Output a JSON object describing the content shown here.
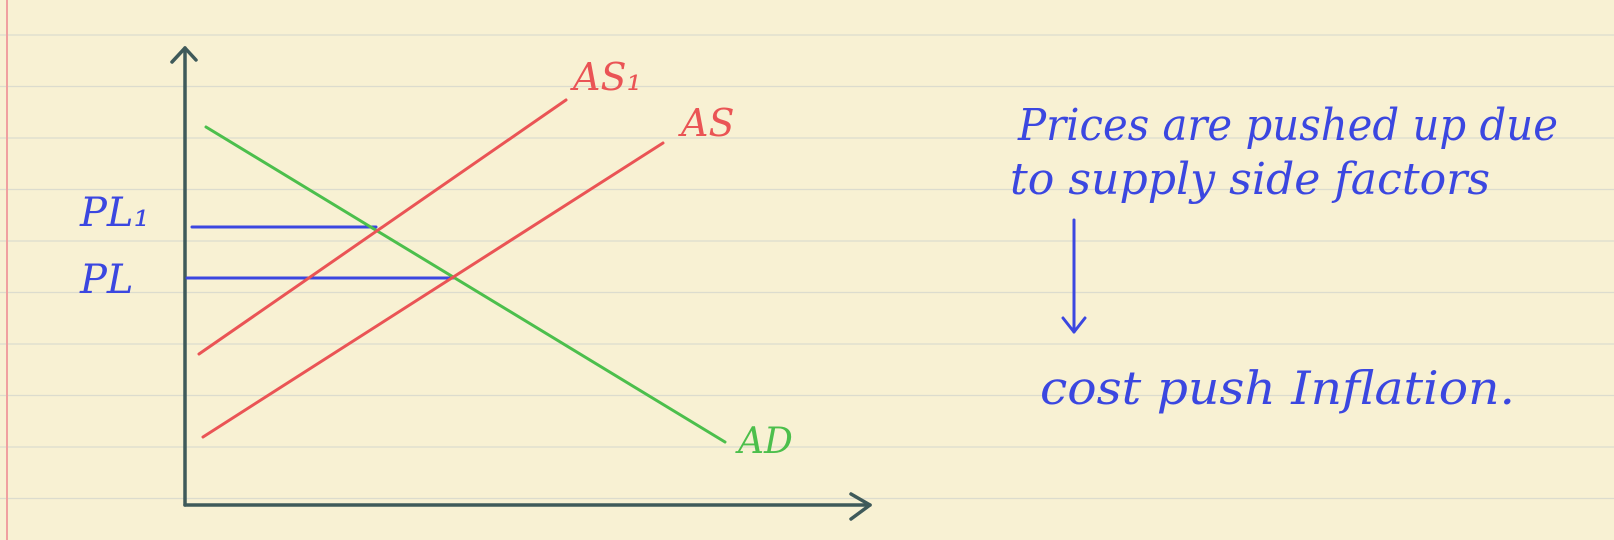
{
  "labels": {
    "as1": "AS₁",
    "as": "AS",
    "ad": "AD",
    "pl1": "PL₁",
    "pl": "PL"
  },
  "note": {
    "line1": "Prices are pushed up due",
    "line2": "to supply side factors",
    "result": "cost push Inflation."
  },
  "colors": {
    "paper": "#f8f1d3",
    "rule_line": "#dcdcce",
    "margin_line": "#f0a0a0",
    "axis": "#3f5a5a",
    "supply": "#ea5455",
    "demand": "#4cbf4c",
    "ink": "#3b47e0"
  }
}
